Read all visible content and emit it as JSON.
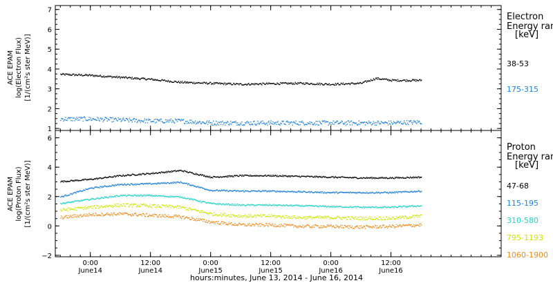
{
  "x_axis_title": "hours:minutes, June 13, 2014 - June 16, 2014",
  "chart_data": [
    {
      "type": "scatter",
      "title": "",
      "ylabel_lines": [
        "ACE EPAM",
        "log(Electron Flux)",
        "[1/(cm²s ster MeV)]"
      ],
      "ylim": [
        0.9,
        7.2
      ],
      "yticks": [
        1,
        2,
        3,
        4,
        5,
        6,
        7
      ],
      "xlim": [
        "2014-06-13 17:00",
        "2014-06-17 10:00"
      ],
      "xticks": [
        {
          "time": "2014-06-14 00:00",
          "label": "0:00",
          "sublabel": "June14"
        },
        {
          "time": "2014-06-14 12:00",
          "label": "12:00",
          "sublabel": "June14"
        },
        {
          "time": "2014-06-15 00:00",
          "label": "0:00",
          "sublabel": "June15"
        },
        {
          "time": "2014-06-15 12:00",
          "label": "12:00",
          "sublabel": "June15"
        },
        {
          "time": "2014-06-16 00:00",
          "label": "0:00",
          "sublabel": "June16"
        },
        {
          "time": "2014-06-16 12:00",
          "label": "12:00",
          "sublabel": "June16"
        }
      ],
      "legend_title_lines": [
        "Electron",
        "Energy ran",
        "[keV]"
      ],
      "series": [
        {
          "name": "38-53",
          "color": "#000000",
          "x": [
            "2014-06-13 18:00",
            "2014-06-14 00:00",
            "2014-06-14 06:00",
            "2014-06-14 12:00",
            "2014-06-14 18:00",
            "2014-06-15 00:00",
            "2014-06-15 06:00",
            "2014-06-15 12:00",
            "2014-06-15 18:00",
            "2014-06-16 00:00",
            "2014-06-16 06:00",
            "2014-06-16 09:00",
            "2014-06-16 12:00",
            "2014-06-16 18:00"
          ],
          "y": [
            3.75,
            3.7,
            3.6,
            3.5,
            3.35,
            3.3,
            3.25,
            3.28,
            3.3,
            3.25,
            3.3,
            3.55,
            3.45,
            3.45
          ]
        },
        {
          "name": "175-315",
          "color": "#1e7fd8",
          "x": [
            "2014-06-13 18:00",
            "2014-06-14 00:00",
            "2014-06-14 06:00",
            "2014-06-14 12:00",
            "2014-06-14 18:00",
            "2014-06-15 00:00",
            "2014-06-15 06:00",
            "2014-06-15 12:00",
            "2014-06-15 18:00",
            "2014-06-16 00:00",
            "2014-06-16 06:00",
            "2014-06-16 12:00",
            "2014-06-16 18:00"
          ],
          "y": [
            1.5,
            1.5,
            1.45,
            1.4,
            1.4,
            1.3,
            1.3,
            1.3,
            1.3,
            1.3,
            1.3,
            1.3,
            1.35
          ]
        }
      ]
    },
    {
      "type": "scatter",
      "title": "",
      "ylabel_lines": [
        "ACE EPAM",
        "log(Proton Flux)",
        "[1/(cm²s ster MeV)]"
      ],
      "ylim": [
        -2.1,
        6.5
      ],
      "yticks": [
        -2,
        0,
        2,
        4,
        6
      ],
      "legend_title_lines": [
        "Proton",
        "Energy ran",
        "[keV]"
      ],
      "series": [
        {
          "name": "47-68",
          "color": "#000000",
          "x": [
            "2014-06-13 18:00",
            "2014-06-14 00:00",
            "2014-06-14 06:00",
            "2014-06-14 12:00",
            "2014-06-14 18:00",
            "2014-06-15 00:00",
            "2014-06-15 06:00",
            "2014-06-15 12:00",
            "2014-06-15 18:00",
            "2014-06-16 00:00",
            "2014-06-16 06:00",
            "2014-06-16 12:00",
            "2014-06-16 18:00"
          ],
          "y": [
            3.05,
            3.2,
            3.45,
            3.6,
            3.8,
            3.35,
            3.45,
            3.45,
            3.4,
            3.35,
            3.3,
            3.3,
            3.35
          ]
        },
        {
          "name": "115-195",
          "color": "#1e7fd8",
          "x": [
            "2014-06-13 18:00",
            "2014-06-14 00:00",
            "2014-06-14 06:00",
            "2014-06-14 12:00",
            "2014-06-14 18:00",
            "2014-06-15 00:00",
            "2014-06-15 06:00",
            "2014-06-15 12:00",
            "2014-06-15 18:00",
            "2014-06-16 00:00",
            "2014-06-16 06:00",
            "2014-06-16 12:00",
            "2014-06-16 18:00"
          ],
          "y": [
            2.0,
            2.6,
            2.85,
            2.9,
            3.0,
            2.45,
            2.4,
            2.4,
            2.35,
            2.3,
            2.3,
            2.3,
            2.4
          ]
        },
        {
          "name": "310-580",
          "color": "#22d3c6",
          "x": [
            "2014-06-13 18:00",
            "2014-06-14 00:00",
            "2014-06-14 06:00",
            "2014-06-14 12:00",
            "2014-06-14 18:00",
            "2014-06-15 00:00",
            "2014-06-15 06:00",
            "2014-06-15 12:00",
            "2014-06-15 18:00",
            "2014-06-16 00:00",
            "2014-06-16 06:00",
            "2014-06-16 12:00",
            "2014-06-16 18:00"
          ],
          "y": [
            1.55,
            1.85,
            2.1,
            2.1,
            2.0,
            1.55,
            1.45,
            1.45,
            1.4,
            1.35,
            1.3,
            1.3,
            1.4
          ]
        },
        {
          "name": "795-1193",
          "color": "#c8e800",
          "x": [
            "2014-06-13 18:00",
            "2014-06-14 00:00",
            "2014-06-14 06:00",
            "2014-06-14 12:00",
            "2014-06-14 18:00",
            "2014-06-15 00:00",
            "2014-06-15 06:00",
            "2014-06-15 12:00",
            "2014-06-15 18:00",
            "2014-06-16 00:00",
            "2014-06-16 06:00",
            "2014-06-16 12:00",
            "2014-06-16 18:00"
          ],
          "y": [
            1.1,
            1.3,
            1.45,
            1.4,
            1.3,
            0.85,
            0.7,
            0.7,
            0.6,
            0.6,
            0.55,
            0.55,
            0.7
          ]
        },
        {
          "name": "1060-1900",
          "color": "#f08a1c",
          "x": [
            "2014-06-13 18:00",
            "2014-06-14 00:00",
            "2014-06-14 06:00",
            "2014-06-14 12:00",
            "2014-06-14 18:00",
            "2014-06-15 00:00",
            "2014-06-15 06:00",
            "2014-06-15 12:00",
            "2014-06-15 18:00",
            "2014-06-16 00:00",
            "2014-06-16 06:00",
            "2014-06-16 12:00",
            "2014-06-16 18:00"
          ],
          "y": [
            0.6,
            0.8,
            0.85,
            0.75,
            0.65,
            0.3,
            0.1,
            0.1,
            0.0,
            0.0,
            -0.05,
            0.0,
            0.1
          ]
        }
      ]
    }
  ]
}
